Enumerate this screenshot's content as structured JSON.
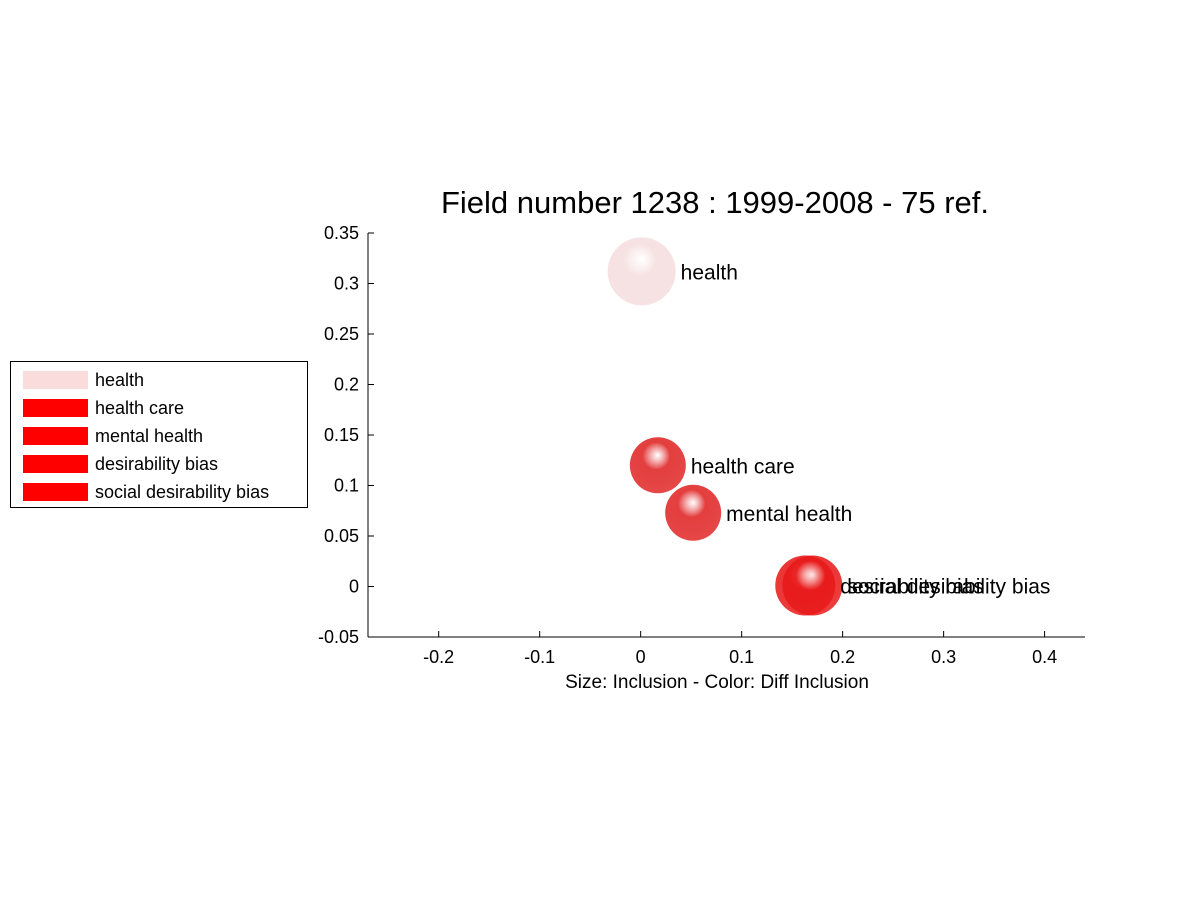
{
  "chart_data": {
    "type": "scatter",
    "title": "Field number 1238 : 1999-2008  - 75 ref.",
    "xlabel": "Size: Inclusion - Color: Diff Inclusion",
    "ylabel": "",
    "xlim": [
      -0.27,
      0.44
    ],
    "ylim": [
      -0.05,
      0.35
    ],
    "x_ticks": [
      -0.2,
      -0.1,
      0,
      0.1,
      0.2,
      0.3,
      0.4
    ],
    "x_tick_labels": [
      "-0.2",
      "-0.1",
      "0",
      "0.1",
      "0.2",
      "0.3",
      "0.4"
    ],
    "y_ticks": [
      -0.05,
      0,
      0.05,
      0.1,
      0.15,
      0.2,
      0.25,
      0.3,
      0.35
    ],
    "y_tick_labels": [
      "-0.05",
      "0",
      "0.05",
      "0.1",
      "0.15",
      "0.2",
      "0.25",
      "0.3",
      "0.35"
    ],
    "grid": false,
    "legend_placement": "outside-left",
    "points": [
      {
        "label": "health",
        "x": 0.001,
        "y": 0.312,
        "color": "#f5dede"
      },
      {
        "label": "health care",
        "x": 0.017,
        "y": 0.12,
        "color": "#e02424"
      },
      {
        "label": "mental health",
        "x": 0.052,
        "y": 0.073,
        "color": "#e02424"
      },
      {
        "label": "desirability bias",
        "x": 0.163,
        "y": 0.001,
        "color": "#e81818"
      },
      {
        "label": "social desirability bias",
        "x": 0.17,
        "y": 0.001,
        "color": "#e81818"
      }
    ]
  },
  "legend": {
    "items": [
      {
        "label": "health",
        "color": "#fbdcdc"
      },
      {
        "label": "health care",
        "color": "#ff0000"
      },
      {
        "label": "mental health",
        "color": "#ff0000"
      },
      {
        "label": "desirability bias",
        "color": "#ff0000"
      },
      {
        "label": "social desirability bias",
        "color": "#ff0000"
      }
    ]
  }
}
